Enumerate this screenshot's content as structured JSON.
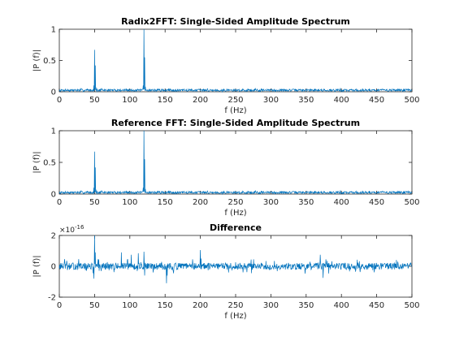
{
  "colors": {
    "line": "#0072bd",
    "axis": "#262626",
    "background": "#ffffff"
  },
  "chart_data": [
    {
      "type": "line",
      "title": "Radix2FFT: Single-Sided Amplitude Spectrum",
      "xlabel": "f (Hz)",
      "ylabel": "|P (f)|",
      "xlim": [
        0,
        500
      ],
      "ylim": [
        0,
        1
      ],
      "xticks": [
        0,
        50,
        100,
        150,
        200,
        250,
        300,
        350,
        400,
        450,
        500
      ],
      "yticks": [
        0,
        0.5,
        1
      ],
      "ytick_labels": [
        "0",
        "0.5",
        "1"
      ],
      "y_exponent": "",
      "grid": false,
      "noise": {
        "base": 0.025,
        "amp": 0.018,
        "seed": 7
      },
      "peaks": [
        {
          "x": 49,
          "y": 0.1
        },
        {
          "x": 50,
          "y": 0.67
        },
        {
          "x": 51,
          "y": 0.42
        },
        {
          "x": 52,
          "y": 0.07
        },
        {
          "x": 119,
          "y": 0.1
        },
        {
          "x": 120,
          "y": 1.0
        },
        {
          "x": 121,
          "y": 0.55
        },
        {
          "x": 122,
          "y": 0.08
        }
      ]
    },
    {
      "type": "line",
      "title": "Reference FFT: Single-Sided Amplitude Spectrum",
      "xlabel": "f (Hz)",
      "ylabel": "|P (f)|",
      "xlim": [
        0,
        500
      ],
      "ylim": [
        0,
        1
      ],
      "xticks": [
        0,
        50,
        100,
        150,
        200,
        250,
        300,
        350,
        400,
        450,
        500
      ],
      "yticks": [
        0,
        0.5,
        1
      ],
      "ytick_labels": [
        "0",
        "0.5",
        "1"
      ],
      "y_exponent": "",
      "grid": false,
      "noise": {
        "base": 0.025,
        "amp": 0.018,
        "seed": 7
      },
      "peaks": [
        {
          "x": 49,
          "y": 0.1
        },
        {
          "x": 50,
          "y": 0.67
        },
        {
          "x": 51,
          "y": 0.42
        },
        {
          "x": 52,
          "y": 0.07
        },
        {
          "x": 119,
          "y": 0.1
        },
        {
          "x": 120,
          "y": 1.0
        },
        {
          "x": 121,
          "y": 0.55
        },
        {
          "x": 122,
          "y": 0.08
        }
      ]
    },
    {
      "type": "line",
      "title": "Difference",
      "xlabel": "f (Hz)",
      "ylabel": "|P (f)|",
      "xlim": [
        0,
        500
      ],
      "ylim": [
        -2e-16,
        2e-16
      ],
      "xticks": [
        0,
        50,
        100,
        150,
        200,
        250,
        300,
        350,
        400,
        450,
        500
      ],
      "yticks": [
        -2e-16,
        0,
        2e-16
      ],
      "ytick_labels": [
        "-2",
        "0",
        "2"
      ],
      "y_exponent": "×10",
      "y_exponent_power": "-16",
      "grid": false,
      "noise": {
        "base": 0,
        "amp": 2.2e-17,
        "seed": 13
      },
      "peaks": [
        {
          "x": 50,
          "y": 2.1e-16
        },
        {
          "x": 51,
          "y": 9e-17
        },
        {
          "x": 49,
          "y": -8e-17
        },
        {
          "x": 88,
          "y": 9e-17
        },
        {
          "x": 102,
          "y": 7.5e-17
        },
        {
          "x": 112,
          "y": 8.5e-17
        },
        {
          "x": 120,
          "y": 9.5e-17
        },
        {
          "x": 121,
          "y": -6e-17
        },
        {
          "x": 152,
          "y": -1.1e-16
        },
        {
          "x": 153,
          "y": -6e-17
        },
        {
          "x": 162,
          "y": -4.5e-17
        },
        {
          "x": 200,
          "y": 1.05e-16
        },
        {
          "x": 201,
          "y": 5e-17
        },
        {
          "x": 240,
          "y": -4e-17
        },
        {
          "x": 305,
          "y": 3.5e-17
        },
        {
          "x": 370,
          "y": 7.5e-17
        },
        {
          "x": 374,
          "y": -7.5e-17
        },
        {
          "x": 420,
          "y": -3.5e-17
        },
        {
          "x": 480,
          "y": 3e-17
        }
      ]
    }
  ]
}
